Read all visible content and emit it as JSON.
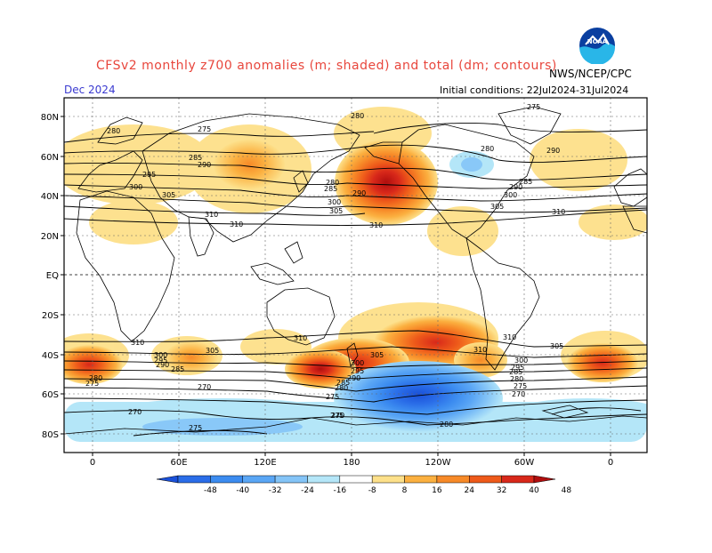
{
  "header": {
    "title": "CFSv2 monthly z700 anomalies (m; shaded) and total (dm; contours)",
    "valid_month": "Dec 2024",
    "initial_conditions": "Initial conditions: 22Jul2024-31Jul2024",
    "agency": "NWS/NCEP/CPC",
    "logo_text": "NOAA"
  },
  "map": {
    "lat_labels": [
      "80N",
      "60N",
      "40N",
      "20N",
      "EQ",
      "20S",
      "40S",
      "60S",
      "80S"
    ],
    "lon_labels": [
      "0",
      "60E",
      "120E",
      "180",
      "120W",
      "60W",
      "0"
    ],
    "contour_labels": [
      {
        "text": "280"
      },
      {
        "text": "275"
      },
      {
        "text": "285"
      },
      {
        "text": "290"
      },
      {
        "text": "295"
      },
      {
        "text": "300"
      },
      {
        "text": "305"
      },
      {
        "text": "310"
      },
      {
        "text": "310"
      },
      {
        "text": "280"
      },
      {
        "text": "280"
      },
      {
        "text": "285"
      },
      {
        "text": "290"
      },
      {
        "text": "300"
      },
      {
        "text": "305"
      },
      {
        "text": "310"
      },
      {
        "text": "275"
      },
      {
        "text": "280"
      },
      {
        "text": "290"
      },
      {
        "text": "285"
      },
      {
        "text": "300"
      },
      {
        "text": "305"
      },
      {
        "text": "310"
      },
      {
        "text": "290"
      },
      {
        "text": "310"
      },
      {
        "text": "310"
      },
      {
        "text": "305"
      },
      {
        "text": "300"
      },
      {
        "text": "295"
      },
      {
        "text": "290"
      },
      {
        "text": "285"
      },
      {
        "text": "280"
      },
      {
        "text": "275"
      },
      {
        "text": "270"
      },
      {
        "text": "300"
      },
      {
        "text": "295"
      },
      {
        "text": "290"
      },
      {
        "text": "285"
      },
      {
        "text": "280"
      },
      {
        "text": "275"
      },
      {
        "text": "305"
      },
      {
        "text": "310"
      },
      {
        "text": "300"
      },
      {
        "text": "295"
      },
      {
        "text": "285"
      },
      {
        "text": "280"
      },
      {
        "text": "275"
      },
      {
        "text": "270"
      },
      {
        "text": "270"
      },
      {
        "text": "275"
      },
      {
        "text": "275"
      },
      {
        "text": "270"
      },
      {
        "text": "280"
      },
      {
        "text": "305"
      },
      {
        "text": "310"
      }
    ]
  },
  "colorbar": {
    "ticks": [
      "-48",
      "-40",
      "-32",
      "-24",
      "-16",
      "-8",
      "8",
      "16",
      "24",
      "32",
      "40",
      "48"
    ],
    "colors": [
      "#1a50d8",
      "#2a6de8",
      "#3c8cf0",
      "#5aa6f5",
      "#84c4f7",
      "#b4e6f8",
      "#ffffff",
      "#fde08a",
      "#fbb040",
      "#f78a28",
      "#ee5a1a",
      "#d8281a",
      "#b00e0e"
    ]
  },
  "colors": {
    "positive_strong": "#c8141a",
    "positive_weak": "#fde08a",
    "negative_strong": "#2a6de8",
    "negative_weak": "#b4e6f8",
    "title": "#e8463c",
    "month": "#3a3ad0"
  }
}
